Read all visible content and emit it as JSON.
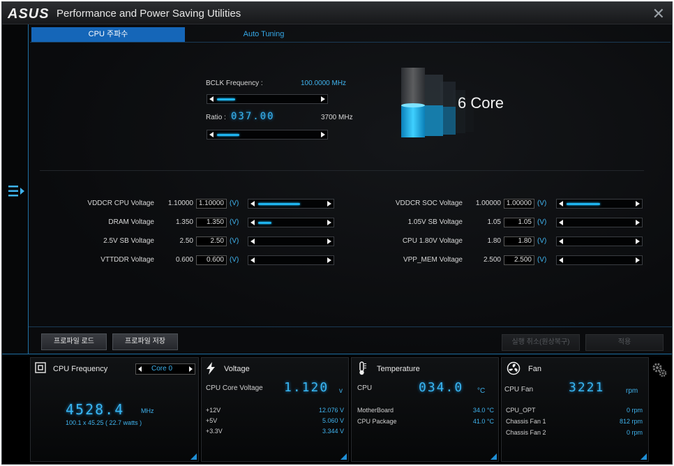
{
  "titlebar": {
    "logo": "ASUS",
    "title": "Performance and Power Saving Utilities",
    "close": "✕"
  },
  "tabs": [
    {
      "label": "CPU 주파수"
    },
    {
      "label": "Auto Tuning"
    }
  ],
  "bclk": {
    "label": "BCLK Frequency :",
    "value": "100.0000 MHz",
    "slider_level": 0.18
  },
  "ratio": {
    "label": "Ratio :",
    "value": "037.00",
    "freq": "3700 MHz",
    "slider_level": 0.22
  },
  "core_badge": {
    "text": "6 Core"
  },
  "voltages_left": [
    {
      "name": "VDDCR CPU Voltage",
      "current": "1.10000",
      "input": "1.10000",
      "unit": "(V)",
      "level": 0.62
    },
    {
      "name": "DRAM Voltage",
      "current": "1.350",
      "input": "1.350",
      "unit": "(V)",
      "level": 0.2
    },
    {
      "name": "2.5V SB Voltage",
      "current": "2.50",
      "input": "2.50",
      "unit": "(V)",
      "level": 0
    },
    {
      "name": "VTTDDR Voltage",
      "current": "0.600",
      "input": "0.600",
      "unit": "(V)",
      "level": 0
    }
  ],
  "voltages_right": [
    {
      "name": "VDDCR SOC Voltage",
      "current": "1.00000",
      "input": "1.00000",
      "unit": "(V)",
      "level": 0.5
    },
    {
      "name": "1.05V SB Voltage",
      "current": "1.05",
      "input": "1.05",
      "unit": "(V)",
      "level": 0
    },
    {
      "name": "CPU 1.80V Voltage",
      "current": "1.80",
      "input": "1.80",
      "unit": "(V)",
      "level": 0
    },
    {
      "name": "VPP_MEM Voltage",
      "current": "2.500",
      "input": "2.500",
      "unit": "(V)",
      "level": 0
    }
  ],
  "buttons": {
    "load": "프로파일 로드",
    "save": "프로파일 저장",
    "undo": "실행 취소(원상복구)",
    "apply": "적용"
  },
  "cpu_freq_panel": {
    "title": "CPU Frequency",
    "core_select": "Core 0",
    "value": "4528.4",
    "unit": "MHz",
    "detail": "100.1  x  45.25 ( 22.7   watts )"
  },
  "voltage_panel": {
    "title": "Voltage",
    "core_label": "CPU Core Voltage",
    "core_value": "1.120",
    "core_unit": "v",
    "rows": [
      {
        "label": "+12V",
        "value": "12.076  V"
      },
      {
        "label": "+5V",
        "value": "5.060  V"
      },
      {
        "label": "+3.3V",
        "value": "3.344  V"
      }
    ]
  },
  "temp_panel": {
    "title": "Temperature",
    "cpu_label": "CPU",
    "cpu_value": "034.0",
    "cpu_unit": "°C",
    "rows": [
      {
        "label": "MotherBoard",
        "value": "34.0 °C"
      },
      {
        "label": "CPU Package",
        "value": "41.0 °C"
      }
    ]
  },
  "fan_panel": {
    "title": "Fan",
    "cpu_label": "CPU Fan",
    "cpu_value": "3221",
    "cpu_unit": "rpm",
    "rows": [
      {
        "label": "CPU_OPT",
        "value": "0  rpm"
      },
      {
        "label": "Chassis Fan 1",
        "value": "812  rpm"
      },
      {
        "label": "Chassis Fan 2",
        "value": "0  rpm"
      }
    ]
  }
}
